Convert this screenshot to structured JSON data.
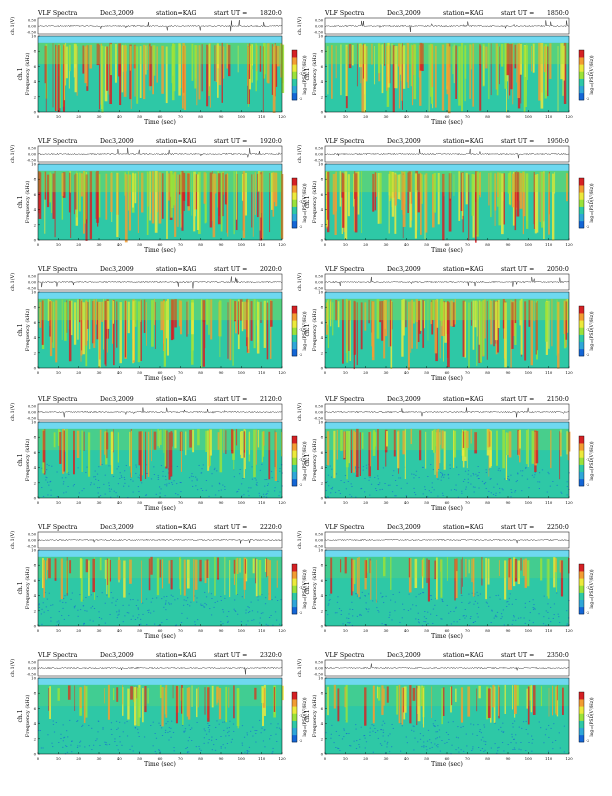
{
  "header": {
    "title": "VLF Spectra",
    "date": "Dec3,2009",
    "station": "station=KAG",
    "start_label": "start UT ="
  },
  "axis_labels": {
    "waveform_y": "ch.1(V)",
    "spectrum_channel": "ch.1",
    "spectrum_y": "Frequency (kHz)",
    "x": "Time (sec)",
    "colorbar": "log₁₀(PSD(V²/Hz))"
  },
  "panels": [
    {
      "start_ut": "1820:0"
    },
    {
      "start_ut": "1850:0"
    },
    {
      "start_ut": "1920:0"
    },
    {
      "start_ut": "1950:0"
    },
    {
      "start_ut": "2020:0"
    },
    {
      "start_ut": "2050:0"
    },
    {
      "start_ut": "2120:0"
    },
    {
      "start_ut": "2150:0"
    },
    {
      "start_ut": "2220:0"
    },
    {
      "start_ut": "2250:0"
    },
    {
      "start_ut": "2320:0"
    },
    {
      "start_ut": "2350:0"
    }
  ],
  "chart_data": {
    "type": "heatmap",
    "x_ticks": [
      "0",
      "10",
      "20",
      "30",
      "40",
      "50",
      "60",
      "70",
      "80",
      "90",
      "100",
      "110",
      "120"
    ],
    "xlim": [
      0,
      120
    ],
    "freq_ticks": [
      "0",
      "2",
      "4",
      "6",
      "8",
      "10"
    ],
    "ylim": [
      0,
      10
    ],
    "waveform_ticks": [
      "0.50",
      "0.00",
      "-0.50"
    ],
    "colorbar_ticks": [
      "-2",
      "-1"
    ],
    "colors": {
      "low": "#1466d6",
      "mid": "#2ec8a6",
      "high_green": "#9ae23a",
      "yellow": "#ece93c",
      "orange": "#f29c32",
      "red": "#d52024",
      "band_top": "#6ed8f0"
    }
  }
}
